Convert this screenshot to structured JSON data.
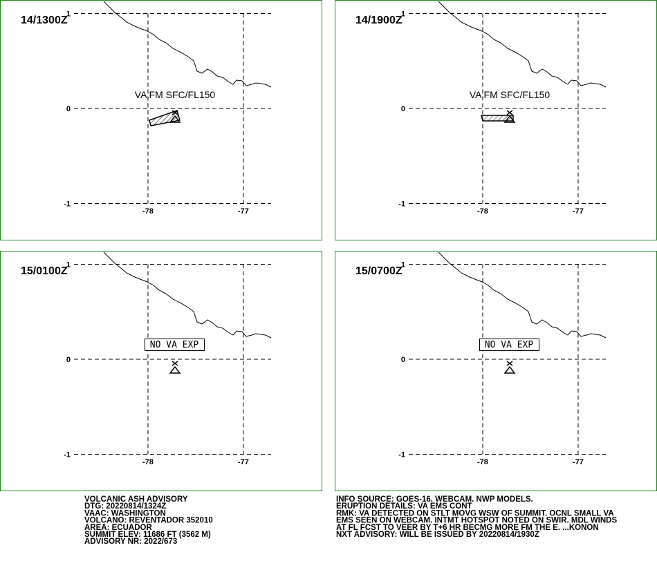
{
  "map": {
    "lat_ticks": [
      1,
      0,
      -1
    ],
    "lon_ticks": [
      -78,
      -77
    ]
  },
  "panels": [
    {
      "time": "14/1300Z",
      "label": "VA FM SFC/FL150"
    },
    {
      "time": "14/1900Z",
      "label": "VA FM SFC/FL150"
    },
    {
      "time": "15/0100Z",
      "label": "NO VA EXP"
    },
    {
      "time": "15/0700Z",
      "label": "NO VA EXP"
    }
  ],
  "advisory": {
    "left": [
      "VOLCANIC ASH ADVISORY",
      "DTG: 20220814/1324Z",
      "VAAC: WASHINGTON",
      "VOLCANO: REVENTADOR 352010",
      "AREA: ECUADOR",
      "SUMMIT ELEV: 11686 FT (3562 M)",
      "ADVISORY NR: 2022/673"
    ],
    "right": [
      "INFO SOURCE: GOES-16. WEBCAM. NWP MODELS.",
      "ERUPTION DETAILS: VA EMS CONT",
      "RMK: VA DETECTED ON STLT MOVG WSW OF SUMMIT. OCNL SMALL VA",
      "EMS SEEN ON WEBCAM. INTMT HOTSPOT NOTED ON SWIR. MDL WINDS",
      "AT FL FCST TO VEER BY T+6 HR BECMG MORE FM THE E. ...KONON",
      "NXT ADVISORY: WILL BE ISSUED BY 20220814/1930Z"
    ]
  }
}
